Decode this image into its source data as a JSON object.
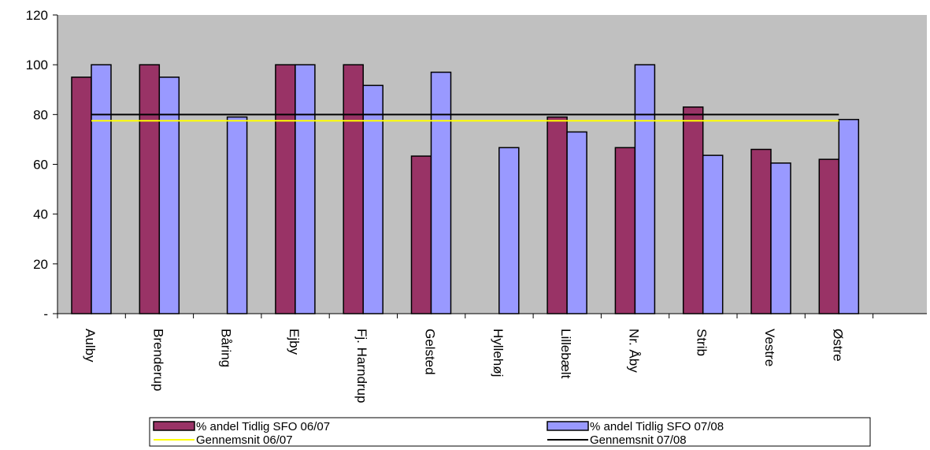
{
  "chart_data": {
    "type": "bar",
    "title": "",
    "xlabel": "",
    "ylabel": "",
    "ylim": [
      0,
      120
    ],
    "yticks": [
      0,
      20,
      40,
      60,
      80,
      100,
      120
    ],
    "ytick_labels": [
      "-",
      "20",
      "40",
      "60",
      "80",
      "100",
      "120"
    ],
    "grid": false,
    "legend_position": "bottom",
    "categories": [
      "Aulby",
      "Brenderup",
      "Båring",
      "Ejby",
      "Fj. Harndrup",
      "Gelsted",
      "Hyllehøj",
      "Lillebælt",
      "Nr. Åby",
      "Strib",
      "Vestre",
      "Østre"
    ],
    "series": [
      {
        "name": "% andel  Tidlig SFO 06/07",
        "color": "#993366",
        "values": [
          95,
          100,
          0,
          100,
          100,
          63.3,
          0,
          79,
          66.7,
          83,
          66,
          62
        ]
      },
      {
        "name": "% andel  Tidlig SFO 07/08",
        "color": "#9999ff",
        "values": [
          100,
          95,
          79,
          100,
          91.7,
          97,
          66.7,
          73,
          100,
          63.6,
          60.5,
          78
        ]
      }
    ],
    "lines": [
      {
        "name": "Gennemsnit 06/07",
        "color": "#ffff00",
        "value": 77.5
      },
      {
        "name": "Gennemsnit 07/08",
        "color": "#000000",
        "value": 80
      }
    ],
    "plot_background": "#c0c0c0"
  }
}
